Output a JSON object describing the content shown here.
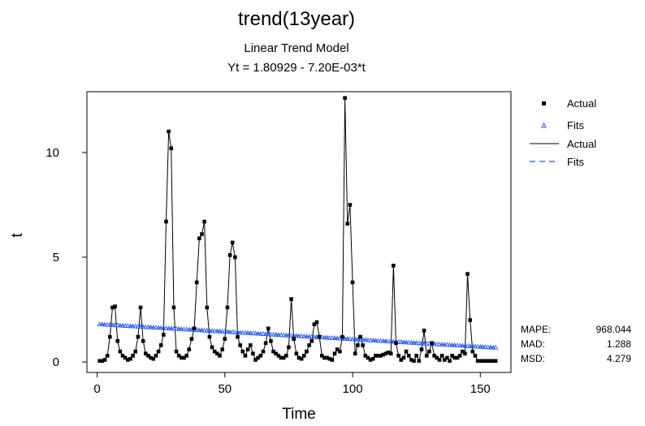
{
  "chart_data": {
    "type": "line",
    "title": "trend(13year)",
    "subtitle": "Linear Trend Model",
    "equation": "Yt = 1.80929 - 7.20E-03*t",
    "xlabel": "Time",
    "ylabel": "t",
    "xlim": [
      -4,
      162
    ],
    "ylim": [
      -0.5,
      12.9
    ],
    "x_ticks": [
      0,
      50,
      100,
      150
    ],
    "y_ticks": [
      0,
      5,
      10
    ],
    "grid": false,
    "legend_position": "right",
    "legend": [
      {
        "label": "Actual",
        "kind": "marker-square"
      },
      {
        "label": "Fits",
        "kind": "marker-triangle"
      },
      {
        "label": "Actual",
        "kind": "line-solid"
      },
      {
        "label": "Fits",
        "kind": "line-dashed"
      }
    ],
    "series": [
      {
        "name": "Actual",
        "color": "#000000",
        "x": [
          1,
          2,
          3,
          4,
          5,
          6,
          7,
          8,
          9,
          10,
          11,
          12,
          13,
          14,
          15,
          16,
          17,
          18,
          19,
          20,
          21,
          22,
          23,
          24,
          25,
          26,
          27,
          28,
          29,
          30,
          31,
          32,
          33,
          34,
          35,
          36,
          37,
          38,
          39,
          40,
          41,
          42,
          43,
          44,
          45,
          46,
          47,
          48,
          49,
          50,
          51,
          52,
          53,
          54,
          55,
          56,
          57,
          58,
          59,
          60,
          61,
          62,
          63,
          64,
          65,
          66,
          67,
          68,
          69,
          70,
          71,
          72,
          73,
          74,
          75,
          76,
          77,
          78,
          79,
          80,
          81,
          82,
          83,
          84,
          85,
          86,
          87,
          88,
          89,
          90,
          91,
          92,
          93,
          94,
          95,
          96,
          97,
          98,
          99,
          100,
          101,
          102,
          103,
          104,
          105,
          106,
          107,
          108,
          109,
          110,
          111,
          112,
          113,
          114,
          115,
          116,
          117,
          118,
          119,
          120,
          121,
          122,
          123,
          124,
          125,
          126,
          127,
          128,
          129,
          130,
          131,
          132,
          133,
          134,
          135,
          136,
          137,
          138,
          139,
          140,
          141,
          142,
          143,
          144,
          145,
          146,
          147,
          148,
          149,
          150,
          151,
          152,
          153,
          154,
          155,
          156
        ],
        "values": [
          0.05,
          0.05,
          0.1,
          0.3,
          1.2,
          2.6,
          2.65,
          1.0,
          0.5,
          0.3,
          0.2,
          0.1,
          0.15,
          0.3,
          0.5,
          1.2,
          2.6,
          1.0,
          0.4,
          0.3,
          0.2,
          0.15,
          0.3,
          0.5,
          0.8,
          1.3,
          6.7,
          11.0,
          10.2,
          2.6,
          0.5,
          0.3,
          0.2,
          0.2,
          0.3,
          0.6,
          1.1,
          1.6,
          3.8,
          5.9,
          6.1,
          6.7,
          2.6,
          1.2,
          0.7,
          0.5,
          0.4,
          0.3,
          0.6,
          1.1,
          2.6,
          5.1,
          5.7,
          5.0,
          1.2,
          0.8,
          0.5,
          0.3,
          0.6,
          0.8,
          0.4,
          0.1,
          0.2,
          0.3,
          0.5,
          0.9,
          1.6,
          1.0,
          0.5,
          0.4,
          0.3,
          0.2,
          0.2,
          0.3,
          0.7,
          3.0,
          1.1,
          0.4,
          0.2,
          0.15,
          0.3,
          0.5,
          0.8,
          1.0,
          1.8,
          1.9,
          1.2,
          0.3,
          0.2,
          0.2,
          0.15,
          0.1,
          0.4,
          0.6,
          0.5,
          1.2,
          12.6,
          6.6,
          7.5,
          3.8,
          0.4,
          0.8,
          1.2,
          0.8,
          0.3,
          0.2,
          0.1,
          0.15,
          0.3,
          0.3,
          0.3,
          0.35,
          0.4,
          0.45,
          0.4,
          4.6,
          0.9,
          0.3,
          0.1,
          0.2,
          0.5,
          0.3,
          0.1,
          0.05,
          0.3,
          0.05,
          0.6,
          1.5,
          0.3,
          0.5,
          0.9,
          0.3,
          0.2,
          0.1,
          0.3,
          0.1,
          0.2,
          0.05,
          0.3,
          0.2,
          0.2,
          0.3,
          0.5,
          0.4,
          4.2,
          2.0,
          0.5,
          0.3,
          0.05,
          0.05,
          0.05,
          0.05,
          0.05,
          0.05,
          0.05,
          0.05
        ]
      },
      {
        "name": "Fits",
        "color": "#2255ff",
        "intercept": 1.80929,
        "slope": -0.0072
      }
    ]
  },
  "stats": {
    "rows": [
      {
        "label": "MAPE:",
        "value": "968.044"
      },
      {
        "label": "MAD:",
        "value": "1.288"
      },
      {
        "label": "MSD:",
        "value": "4.279"
      }
    ]
  }
}
